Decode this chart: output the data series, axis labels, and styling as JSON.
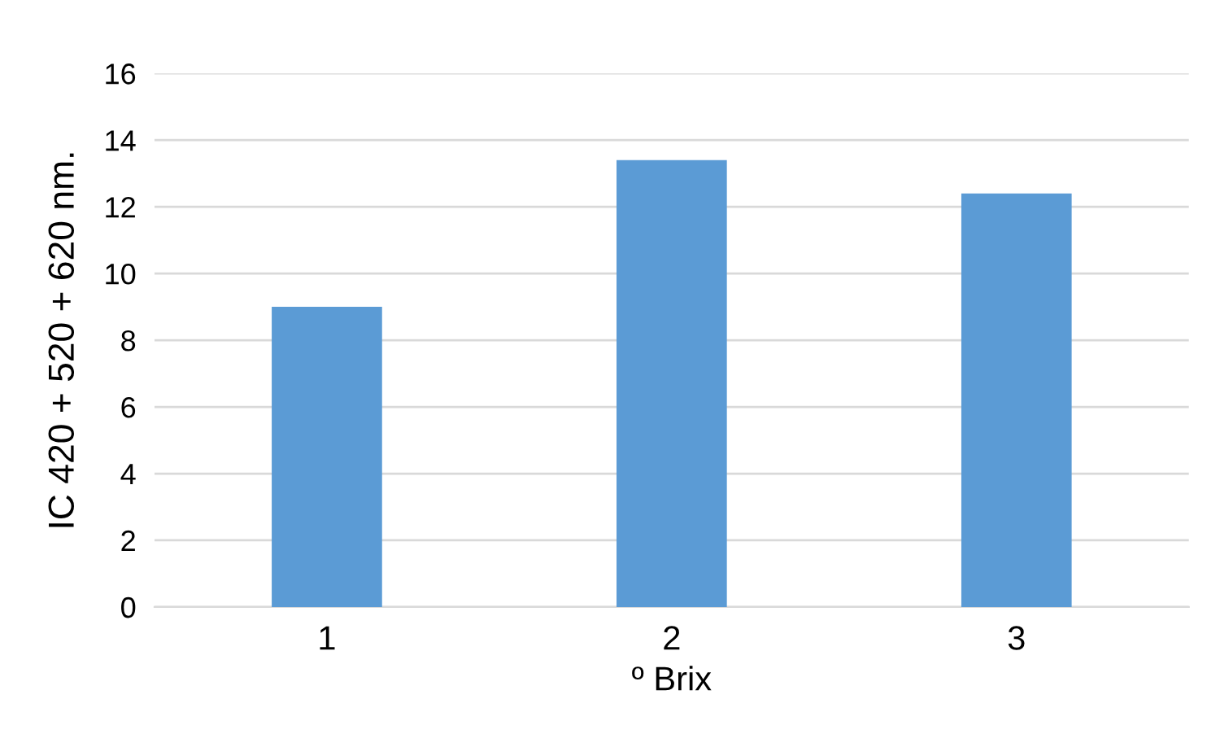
{
  "chart_data": {
    "type": "bar",
    "categories": [
      "1",
      "2",
      "3"
    ],
    "values": [
      9,
      13.4,
      12.4
    ],
    "color": "#5b9bd5",
    "xlabel": "º Brix",
    "ylabel": "IC 420 + 520 + 620 nm.",
    "ylim": [
      0,
      16
    ],
    "yticks": [
      0,
      2,
      4,
      6,
      8,
      10,
      12,
      14,
      16
    ],
    "grid": "y"
  }
}
